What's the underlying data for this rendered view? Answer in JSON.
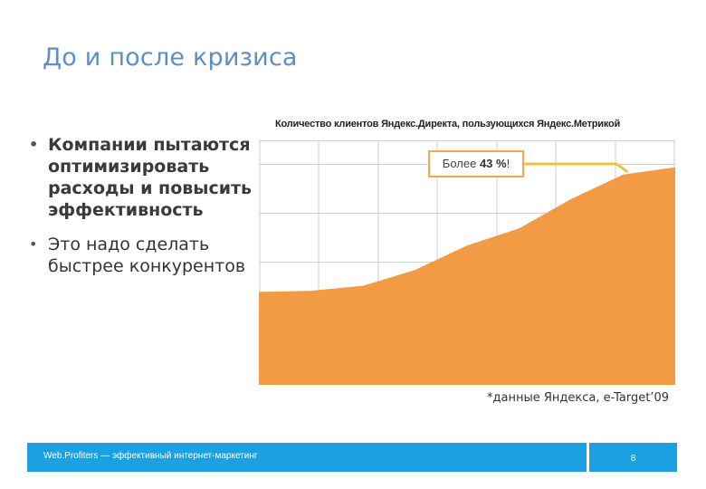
{
  "slide": {
    "title": "До и после кризиса",
    "bullets": [
      "Компании пытаются оптимизировать расходы и повысить эффективность",
      "Это надо сделать быстрее конкурентов"
    ],
    "footnote": "*данные Яндекса, e-Target’09"
  },
  "chart_data": {
    "type": "area",
    "title": "Количество клиентов Яндекс.Директа, пользующихся Яндекс.Метрикой",
    "values": [
      38,
      38.5,
      40.5,
      47,
      57,
      64,
      76,
      86,
      89
    ],
    "ylim": [
      0,
      100
    ],
    "grid": true,
    "color": "#f39a45",
    "annotation": {
      "prefix": "Более ",
      "value": "43 %",
      "suffix": "!"
    }
  },
  "footer": {
    "text": "Web.Profiters — эффективный интернет-маркетинг",
    "page": "8",
    "color": "#1ba1e2"
  }
}
